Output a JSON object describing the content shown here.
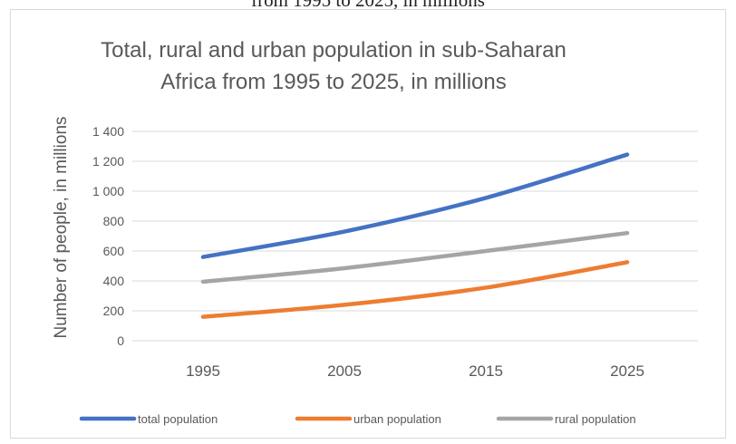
{
  "page": {
    "caption": "from 1995 to 2025, in millions"
  },
  "chart_data": {
    "type": "line",
    "title": "Total, rural and urban population in sub-Saharan Africa from 1995  to 2025,  in millions",
    "title_lines": [
      "Total, rural and urban population in sub-Saharan",
      "Africa from 1995  to 2025,  in millions"
    ],
    "xlabel": "",
    "ylabel": "Number of people, in millions",
    "categories": [
      "1995",
      "2005",
      "2015",
      "2025"
    ],
    "y_ticks": [
      0,
      200,
      400,
      600,
      800,
      1000,
      1200,
      1400
    ],
    "y_tick_labels": [
      "0",
      "200",
      "400",
      "600",
      "800",
      "1 000",
      "1 200",
      "1 400"
    ],
    "ylim": [
      0,
      1400
    ],
    "grid": true,
    "legend_position": "bottom",
    "series": [
      {
        "name": "total population",
        "values": [
          560,
          730,
          955,
          1245
        ],
        "color": "#4472c4"
      },
      {
        "name": "urban population",
        "values": [
          160,
          240,
          355,
          525
        ],
        "color": "#ed7d31"
      },
      {
        "name": "rural population",
        "values": [
          395,
          485,
          600,
          720
        ],
        "color": "#a5a5a5"
      }
    ],
    "colors": {
      "grid": "#d9d9d9",
      "text": "#595959"
    }
  }
}
